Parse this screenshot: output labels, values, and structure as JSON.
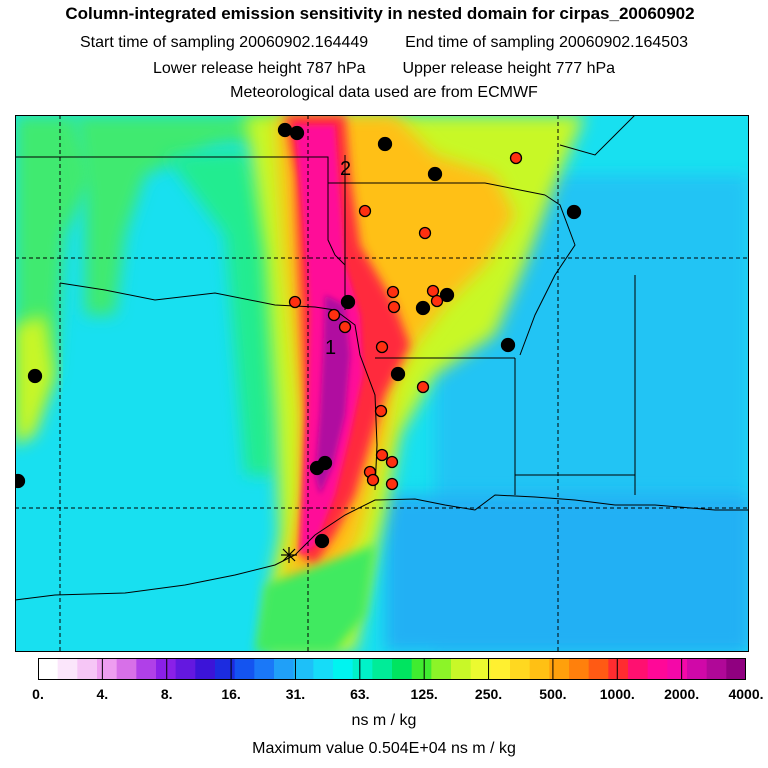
{
  "title": "Column-integrated emission sensitivity in nested domain for cirpas_20060902",
  "start_label": "Start time of sampling",
  "start_value": "20060902.164449",
  "end_label": "End time of sampling",
  "end_value": "20060902.164503",
  "lower_label": "Lower release height",
  "lower_value": "787 hPa",
  "upper_label": "Upper release height",
  "upper_value": "777 hPa",
  "met_line": "Meteorological data used are from ECMWF",
  "map": {
    "label_1": "1",
    "label_2": "2"
  },
  "colorbar": {
    "tick_labels": [
      "0.",
      "4.",
      "8.",
      "16.",
      "31.",
      "63.",
      "125.",
      "250.",
      "500.",
      "1000.",
      "2000.",
      "4000."
    ],
    "colors": [
      "#ffffff",
      "#fbe6fb",
      "#f6c6f6",
      "#ee9ef0",
      "#d770e8",
      "#b040e8",
      "#8a20e8",
      "#6418e0",
      "#3c14d8",
      "#1c2ce0",
      "#1454f0",
      "#1a78f8",
      "#20a0f8",
      "#1ec0f8",
      "#16dcf8",
      "#00f4f0",
      "#00f2c8",
      "#00ec98",
      "#00e460",
      "#40ec30",
      "#8cf428",
      "#c8f828",
      "#ecfa30",
      "#fff030",
      "#ffd820",
      "#ffc014",
      "#ffa00c",
      "#ff800c",
      "#ff5a14",
      "#ff2c30",
      "#ff1070",
      "#ff0898",
      "#f408a8",
      "#d008a8",
      "#b00898",
      "#900080"
    ],
    "units": "ns m / kg",
    "max_label": "Maximum value",
    "max_value": "0.504E+04 ns m / kg"
  },
  "sites": {
    "black": [
      [
        270,
        15
      ],
      [
        282,
        18
      ],
      [
        370,
        29
      ],
      [
        420,
        59
      ],
      [
        559,
        97
      ],
      [
        333,
        187
      ],
      [
        408,
        193
      ],
      [
        432,
        180
      ],
      [
        493,
        230
      ],
      [
        383,
        259
      ],
      [
        20,
        261
      ],
      [
        310,
        348
      ],
      [
        302,
        353
      ],
      [
        307,
        426
      ],
      [
        3,
        366
      ]
    ],
    "red": [
      [
        501,
        43
      ],
      [
        350,
        96
      ],
      [
        410,
        118
      ],
      [
        280,
        187
      ],
      [
        319,
        200
      ],
      [
        330,
        212
      ],
      [
        378,
        177
      ],
      [
        379,
        192
      ],
      [
        418,
        176
      ],
      [
        422,
        186
      ],
      [
        367,
        232
      ],
      [
        408,
        272
      ],
      [
        366,
        296
      ],
      [
        367,
        340
      ],
      [
        377,
        347
      ],
      [
        355,
        357
      ],
      [
        358,
        365
      ],
      [
        377,
        369
      ]
    ]
  }
}
